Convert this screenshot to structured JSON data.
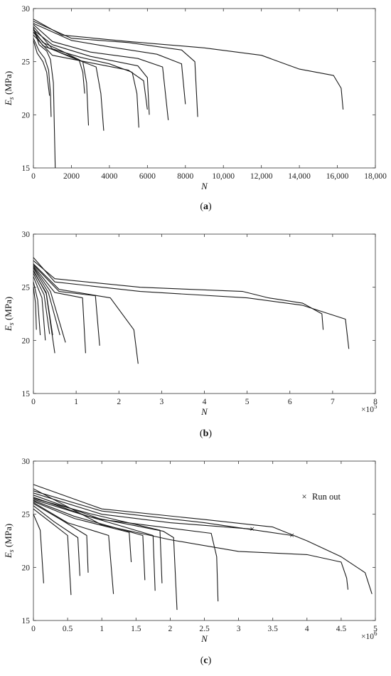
{
  "chart_data": [
    {
      "type": "line",
      "panel_label": "(a)",
      "xlabel": "N",
      "ylabel": "E_s (MPa)",
      "xlim": [
        0,
        18000
      ],
      "ylim": [
        15,
        30
      ],
      "xticks": [
        "0",
        "2000",
        "4000",
        "6000",
        "8000",
        "10,000",
        "12,000",
        "14,000",
        "16,000",
        "18,000"
      ],
      "yticks": [
        "15",
        "20",
        "25",
        "30"
      ],
      "series": [
        {
          "values": [
            [
              0,
              27.0
            ],
            [
              200,
              25.8
            ],
            [
              500,
              25.0
            ],
            [
              700,
              24.0
            ],
            [
              800,
              22.5
            ],
            [
              850,
              21.8
            ]
          ]
        },
        {
          "values": [
            [
              0,
              27.2
            ],
            [
              300,
              26.0
            ],
            [
              600,
              25.3
            ],
            [
              800,
              24.2
            ],
            [
              900,
              22.0
            ],
            [
              930,
              19.8
            ]
          ]
        },
        {
          "values": [
            [
              0,
              28.2
            ],
            [
              300,
              26.6
            ],
            [
              700,
              26.0
            ],
            [
              900,
              25.2
            ],
            [
              1050,
              23.0
            ],
            [
              1150,
              15.0
            ]
          ]
        },
        {
          "values": [
            [
              0,
              27.8
            ],
            [
              500,
              26.5
            ],
            [
              1500,
              25.8
            ],
            [
              2400,
              25.2
            ],
            [
              2600,
              24.0
            ],
            [
              2700,
              22.0
            ]
          ]
        },
        {
          "values": [
            [
              0,
              28.0
            ],
            [
              500,
              26.8
            ],
            [
              1500,
              26.0
            ],
            [
              2600,
              25.0
            ],
            [
              2800,
              23.0
            ],
            [
              2900,
              19.0
            ]
          ]
        },
        {
          "values": [
            [
              0,
              27.8
            ],
            [
              800,
              26.3
            ],
            [
              2000,
              25.4
            ],
            [
              3300,
              24.5
            ],
            [
              3550,
              22.0
            ],
            [
              3700,
              18.5
            ]
          ]
        },
        {
          "values": [
            [
              0,
              28.3
            ],
            [
              1000,
              26.2
            ],
            [
              2500,
              25.4
            ],
            [
              4000,
              24.8
            ],
            [
              5200,
              24.0
            ],
            [
              5450,
              22.0
            ],
            [
              5550,
              18.8
            ]
          ]
        },
        {
          "values": [
            [
              0,
              27.5
            ],
            [
              1000,
              25.6
            ],
            [
              3000,
              24.9
            ],
            [
              5000,
              24.2
            ],
            [
              5800,
              23.2
            ],
            [
              6000,
              20.5
            ]
          ]
        },
        {
          "values": [
            [
              0,
              28.0
            ],
            [
              1000,
              26.6
            ],
            [
              3000,
              25.5
            ],
            [
              5500,
              24.6
            ],
            [
              6000,
              23.5
            ],
            [
              6100,
              20.0
            ]
          ]
        },
        {
          "values": [
            [
              0,
              28.5
            ],
            [
              1000,
              26.9
            ],
            [
              3000,
              25.9
            ],
            [
              5500,
              25.3
            ],
            [
              6800,
              24.5
            ],
            [
              7100,
              19.5
            ]
          ]
        },
        {
          "values": [
            [
              0,
              28.6
            ],
            [
              2000,
              27.0
            ],
            [
              4000,
              26.4
            ],
            [
              6500,
              25.7
            ],
            [
              7800,
              24.8
            ],
            [
              8000,
              21.0
            ]
          ]
        },
        {
          "values": [
            [
              0,
              28.8
            ],
            [
              2000,
              27.2
            ],
            [
              5000,
              26.8
            ],
            [
              7800,
              26.1
            ],
            [
              8500,
              25.0
            ],
            [
              8650,
              19.8
            ]
          ]
        },
        {
          "values": [
            [
              0,
              29.0
            ],
            [
              1500,
              27.5
            ],
            [
              5000,
              26.9
            ],
            [
              9000,
              26.3
            ],
            [
              12000,
              25.6
            ],
            [
              14000,
              24.3
            ],
            [
              15800,
              23.7
            ],
            [
              16200,
              22.5
            ],
            [
              16300,
              20.5
            ]
          ]
        }
      ]
    },
    {
      "type": "line",
      "panel_label": "(b)",
      "xlabel": "N",
      "ylabel": "E_s (MPa)",
      "xlim": [
        0,
        8
      ],
      "ylim": [
        15,
        30
      ],
      "xticks": [
        "0",
        "1",
        "2",
        "3",
        "4",
        "5",
        "6",
        "7",
        "8"
      ],
      "yticks": [
        "15",
        "20",
        "25",
        "30"
      ],
      "x_multiplier": "×10",
      "x_multiplier_exp": "5",
      "series": [
        {
          "values": [
            [
              0,
              25.0
            ],
            [
              0.05,
              23.5
            ],
            [
              0.07,
              21.0
            ]
          ]
        },
        {
          "values": [
            [
              0,
              25.5
            ],
            [
              0.1,
              23.8
            ],
            [
              0.16,
              20.5
            ]
          ]
        },
        {
          "values": [
            [
              0,
              26.0
            ],
            [
              0.2,
              24.0
            ],
            [
              0.28,
              20.0
            ]
          ]
        },
        {
          "values": [
            [
              0,
              26.3
            ],
            [
              0.25,
              24.3
            ],
            [
              0.38,
              20.6
            ]
          ]
        },
        {
          "values": [
            [
              0,
              26.5
            ],
            [
              0.3,
              24.5
            ],
            [
              0.45,
              20.5
            ]
          ]
        },
        {
          "values": [
            [
              0,
              26.6
            ],
            [
              0.3,
              24.4
            ],
            [
              0.5,
              18.8
            ]
          ]
        },
        {
          "values": [
            [
              0,
              26.8
            ],
            [
              0.35,
              24.5
            ],
            [
              0.62,
              20.5
            ]
          ]
        },
        {
          "values": [
            [
              0,
              26.9
            ],
            [
              0.4,
              24.6
            ],
            [
              0.75,
              19.8
            ]
          ]
        },
        {
          "values": [
            [
              0,
              27.0
            ],
            [
              0.5,
              24.5
            ],
            [
              1.15,
              24.0
            ],
            [
              1.22,
              18.8
            ]
          ]
        },
        {
          "values": [
            [
              0,
              27.1
            ],
            [
              0.6,
              24.6
            ],
            [
              1.45,
              24.2
            ],
            [
              1.55,
              19.5
            ]
          ]
        },
        {
          "values": [
            [
              0,
              27.2
            ],
            [
              0.6,
              24.8
            ],
            [
              1.8,
              24.0
            ],
            [
              2.35,
              21.0
            ],
            [
              2.45,
              17.8
            ]
          ]
        },
        {
          "values": [
            [
              0,
              27.5
            ],
            [
              0.5,
              25.8
            ],
            [
              2.5,
              25.0
            ],
            [
              4.9,
              24.6
            ],
            [
              5.5,
              24.0
            ],
            [
              6.3,
              23.5
            ],
            [
              6.75,
              22.5
            ],
            [
              6.78,
              21.0
            ]
          ]
        },
        {
          "values": [
            [
              0,
              27.8
            ],
            [
              0.5,
              25.5
            ],
            [
              2.5,
              24.6
            ],
            [
              5.0,
              24.0
            ],
            [
              6.3,
              23.3
            ],
            [
              7.3,
              22.0
            ],
            [
              7.38,
              19.2
            ]
          ]
        }
      ]
    },
    {
      "type": "line",
      "panel_label": "(c)",
      "xlabel": "N",
      "ylabel": "E_s (MPa)",
      "xlim": [
        0,
        5
      ],
      "ylim": [
        15,
        30
      ],
      "xticks": [
        "0",
        "0.5",
        "1",
        "1.5",
        "2",
        "2.5",
        "3",
        "3.5",
        "4",
        "4.5",
        "5"
      ],
      "yticks": [
        "15",
        "20",
        "25",
        "30"
      ],
      "x_multiplier": "×10",
      "x_multiplier_exp": "6",
      "legend_label": "Run out",
      "legend_marker": "×",
      "runout_points": [
        [
          3.2,
          23.6
        ],
        [
          3.78,
          23.0
        ]
      ],
      "series": [
        {
          "values": [
            [
              0,
              25.0
            ],
            [
              0.1,
              23.5
            ],
            [
              0.15,
              18.5
            ]
          ]
        },
        {
          "values": [
            [
              0,
              25.5
            ],
            [
              0.3,
              24.0
            ],
            [
              0.5,
              23.0
            ],
            [
              0.55,
              17.4
            ]
          ]
        },
        {
          "values": [
            [
              0,
              25.8
            ],
            [
              0.3,
              24.3
            ],
            [
              0.65,
              22.8
            ],
            [
              0.68,
              19.2
            ]
          ]
        },
        {
          "values": [
            [
              0,
              26.0
            ],
            [
              0.4,
              24.5
            ],
            [
              0.78,
              23.0
            ],
            [
              0.8,
              19.5
            ]
          ]
        },
        {
          "values": [
            [
              0,
              26.1
            ],
            [
              0.5,
              24.2
            ],
            [
              1.1,
              23.0
            ],
            [
              1.17,
              17.5
            ]
          ]
        },
        {
          "values": [
            [
              0,
              26.2
            ],
            [
              0.6,
              24.6
            ],
            [
              1.4,
              23.3
            ],
            [
              1.43,
              20.5
            ]
          ]
        },
        {
          "values": [
            [
              0,
              26.3
            ],
            [
              0.6,
              24.8
            ],
            [
              1.6,
              23.0
            ],
            [
              1.63,
              18.8
            ]
          ]
        },
        {
          "values": [
            [
              0,
              26.4
            ],
            [
              0.7,
              25.0
            ],
            [
              1.75,
              23.0
            ],
            [
              1.78,
              17.8
            ]
          ]
        },
        {
          "values": [
            [
              0,
              26.5
            ],
            [
              0.8,
              25.1
            ],
            [
              1.85,
              23.5
            ],
            [
              1.88,
              18.5
            ]
          ]
        },
        {
          "values": [
            [
              0,
              26.6
            ],
            [
              0.8,
              24.8
            ],
            [
              1.9,
              23.4
            ],
            [
              2.05,
              22.8
            ],
            [
              2.1,
              16.0
            ]
          ]
        },
        {
          "values": [
            [
              0,
              26.8
            ],
            [
              1.0,
              24.5
            ],
            [
              2.6,
              23.2
            ],
            [
              2.68,
              21.0
            ],
            [
              2.7,
              16.8
            ]
          ]
        },
        {
          "values": [
            [
              0,
              27.0
            ],
            [
              1.0,
              25.0
            ],
            [
              2.0,
              24.2
            ],
            [
              3.2,
              23.6
            ]
          ]
        },
        {
          "values": [
            [
              0,
              27.2
            ],
            [
              1.0,
              25.3
            ],
            [
              2.5,
              24.2
            ],
            [
              3.78,
              23.0
            ]
          ]
        },
        {
          "values": [
            [
              0,
              27.4
            ],
            [
              1.0,
              24.0
            ],
            [
              2.0,
              22.6
            ],
            [
              3.0,
              21.5
            ],
            [
              4.0,
              21.2
            ],
            [
              4.5,
              20.5
            ],
            [
              4.58,
              19.0
            ],
            [
              4.6,
              17.9
            ]
          ]
        },
        {
          "values": [
            [
              0,
              27.8
            ],
            [
              1.0,
              25.5
            ],
            [
              2.5,
              24.5
            ],
            [
              3.5,
              23.8
            ],
            [
              4.0,
              22.5
            ],
            [
              4.5,
              21.0
            ],
            [
              4.85,
              19.5
            ],
            [
              4.95,
              17.5
            ]
          ]
        }
      ]
    }
  ]
}
